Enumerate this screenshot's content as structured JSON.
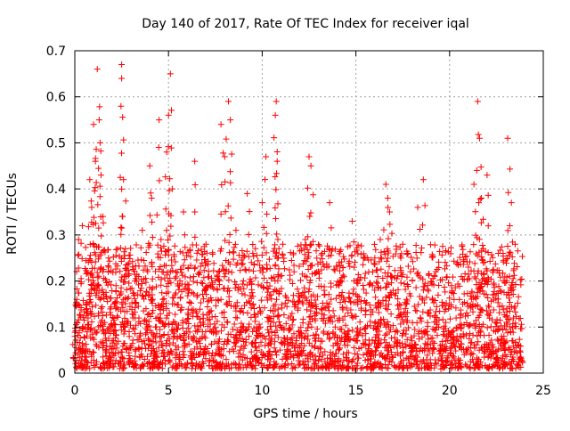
{
  "chart_data": {
    "type": "scatter",
    "title": "Day 140 of 2017, Rate Of TEC Index for receiver iqal",
    "xlabel": "GPS time / hours",
    "ylabel": "ROTI / TECUs",
    "xlim": [
      0,
      25
    ],
    "ylim": [
      0,
      0.7
    ],
    "x_ticks": [
      0,
      5,
      10,
      15,
      20,
      25
    ],
    "y_ticks": [
      0,
      0.1,
      0.2,
      0.3,
      0.4,
      0.5,
      0.6,
      0.7
    ],
    "x_tick_labels": [
      "0",
      "5",
      "10",
      "15",
      "20",
      "25"
    ],
    "y_tick_labels": [
      "0",
      "0.1",
      "0.2",
      "0.3",
      "0.4",
      "0.5",
      "0.6",
      "0.7"
    ],
    "grid": true,
    "marker": "+",
    "series": [
      {
        "name": "ROTI",
        "color": "#ff0000",
        "notes": "Dense scatter between 0 and ~24 h; representative sample of peaks and clusters",
        "x": [
          0.0,
          0.2,
          0.3,
          0.4,
          0.6,
          0.8,
          0.9,
          1.0,
          1.1,
          1.2,
          1.3,
          1.35,
          1.4,
          1.5,
          1.6,
          1.8,
          2.0,
          2.2,
          2.5,
          2.5,
          2.55,
          2.6,
          2.7,
          2.9,
          3.1,
          3.3,
          3.6,
          3.8,
          4.0,
          4.1,
          4.3,
          4.5,
          4.6,
          4.7,
          4.9,
          5.0,
          5.1,
          5.2,
          5.4,
          5.6,
          5.8,
          6.1,
          6.4,
          6.7,
          7.0,
          7.3,
          7.6,
          7.8,
          8.0,
          8.2,
          8.3,
          8.6,
          8.9,
          9.2,
          9.5,
          9.7,
          10.0,
          10.2,
          10.4,
          10.7,
          10.75,
          10.8,
          11.1,
          11.4,
          11.7,
          12.0,
          12.3,
          12.5,
          12.6,
          12.9,
          13.2,
          13.6,
          13.9,
          14.2,
          14.5,
          14.8,
          15.1,
          15.4,
          15.7,
          16.0,
          16.3,
          16.6,
          16.7,
          16.8,
          17.1,
          17.4,
          17.7,
          18.0,
          18.3,
          18.6,
          18.9,
          19.2,
          19.5,
          19.8,
          20.1,
          20.4,
          20.7,
          21.0,
          21.3,
          21.5,
          21.6,
          21.7,
          21.8,
          22.0,
          22.3,
          22.6,
          22.9,
          23.1,
          23.3,
          23.5,
          23.7
        ],
        "y": [
          0.08,
          0.29,
          0.05,
          0.32,
          0.15,
          0.42,
          0.36,
          0.54,
          0.46,
          0.66,
          0.55,
          0.5,
          0.43,
          0.34,
          0.11,
          0.25,
          0.07,
          0.19,
          0.67,
          0.64,
          0.34,
          0.42,
          0.27,
          0.09,
          0.12,
          0.2,
          0.31,
          0.14,
          0.45,
          0.38,
          0.1,
          0.55,
          0.29,
          0.16,
          0.48,
          0.56,
          0.65,
          0.4,
          0.22,
          0.08,
          0.35,
          0.18,
          0.46,
          0.11,
          0.28,
          0.09,
          0.21,
          0.54,
          0.47,
          0.59,
          0.55,
          0.31,
          0.14,
          0.39,
          0.26,
          0.1,
          0.37,
          0.47,
          0.17,
          0.56,
          0.59,
          0.46,
          0.28,
          0.12,
          0.22,
          0.08,
          0.29,
          0.47,
          0.45,
          0.14,
          0.26,
          0.37,
          0.1,
          0.2,
          0.08,
          0.33,
          0.15,
          0.25,
          0.06,
          0.18,
          0.29,
          0.41,
          0.38,
          0.35,
          0.09,
          0.25,
          0.16,
          0.07,
          0.36,
          0.42,
          0.13,
          0.21,
          0.06,
          0.11,
          0.19,
          0.08,
          0.15,
          0.23,
          0.41,
          0.59,
          0.51,
          0.38,
          0.27,
          0.43,
          0.17,
          0.26,
          0.08,
          0.51,
          0.37,
          0.28,
          0.06
        ],
        "baseline_band": {
          "x_start": 0.0,
          "x_end": 23.9,
          "y_min": 0.01,
          "y_max": 0.28,
          "description": "Continuous dense cloud of ROTI values throughout the day"
        }
      }
    ]
  }
}
